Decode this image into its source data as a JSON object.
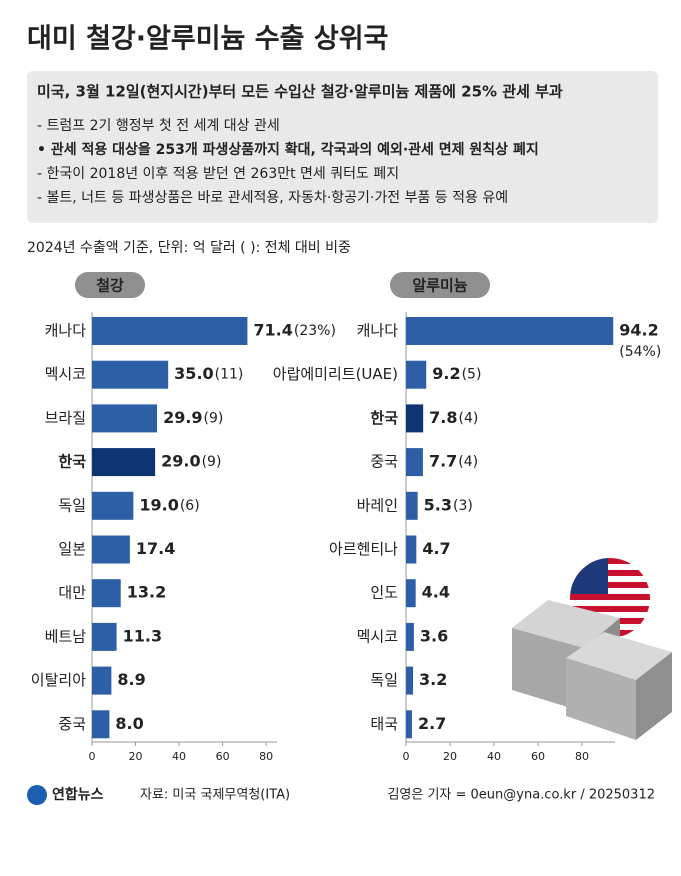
{
  "header": {
    "title": "대미 철강·알루미늄 수출 상위국"
  },
  "notes": {
    "headline": "미국, 3월 12일(현지시간)부터 모든 수입산 철강·알루미늄 제품에 25% 관세 부과",
    "items": [
      {
        "text": "- 트럼프 2기 행정부 첫 전 세계 대상 관세",
        "bold": false
      },
      {
        "text": "• 관세 적용 대상을 253개 파생상품까지 확대, 각국과의 예외·관세 면제 원칙상 폐지",
        "bold": true
      },
      {
        "text": "- 한국이 2018년 이후 적용 받던 연 263만t 면세 쿼터도 폐지",
        "bold": false
      },
      {
        "text": "- 볼트, 너트 등 파생상품은 바로 관세적용, 자동차·항공기·가전 부품 등 적용 유예",
        "bold": false
      }
    ]
  },
  "unit_note": "2024년 수출액 기준, 단위: 억 달러  ( ): 전체 대비 비중",
  "chart_data": [
    {
      "type": "bar",
      "orientation": "horizontal",
      "title": "철강",
      "categories": [
        "캐나다",
        "멕시코",
        "브라질",
        "한국",
        "독일",
        "일본",
        "대만",
        "베트남",
        "이탈리아",
        "중국"
      ],
      "values": [
        71.4,
        35.0,
        29.9,
        29.0,
        19.0,
        17.4,
        13.2,
        11.3,
        8.9,
        8.0
      ],
      "value_labels": [
        "71.4",
        "35.0",
        "29.9",
        "29.0",
        "19.0",
        "17.4",
        "13.2",
        "11.3",
        "8.9",
        "8.0"
      ],
      "shares": [
        23,
        11,
        9,
        9,
        6,
        null,
        null,
        null,
        null,
        null
      ],
      "share_labels": [
        "(23%)",
        "(11)",
        "(9)",
        "(9)",
        "(6)",
        null,
        null,
        null,
        null,
        null
      ],
      "color": "#2d5fa6",
      "highlight": 3,
      "highlight_color": "#0c3572",
      "xlim": [
        0,
        85
      ],
      "xticks": [
        0,
        20,
        40,
        60,
        80
      ]
    },
    {
      "type": "bar",
      "orientation": "horizontal",
      "title": "알루미늄",
      "categories": [
        "캐나다",
        "아랍에미리트(UAE)",
        "한국",
        "중국",
        "바레인",
        "아르헨티나",
        "인도",
        "멕시코",
        "독일",
        "태국"
      ],
      "values": [
        94.2,
        9.2,
        7.8,
        7.7,
        5.3,
        4.7,
        4.4,
        3.6,
        3.2,
        2.7
      ],
      "value_labels": [
        "94.2",
        "9.2",
        "7.8",
        "7.7",
        "5.3",
        "4.7",
        "4.4",
        "3.6",
        "3.2",
        "2.7"
      ],
      "shares": [
        54,
        5,
        4,
        4,
        3,
        null,
        null,
        null,
        null,
        null
      ],
      "share_labels": [
        "(54%)",
        "(5)",
        "(4)",
        "(4)",
        "(3)",
        null,
        null,
        null,
        null,
        null
      ],
      "color": "#2d5fa6",
      "highlight": 2,
      "highlight_color": "#0c3572",
      "xlim": [
        0,
        95
      ],
      "xticks": [
        0,
        20,
        40,
        60,
        80
      ]
    }
  ],
  "footer": {
    "logo": "연합뉴스",
    "source": "자료: 미국 국제무역청(ITA)",
    "credit": "김영은 기자 = 0eun@yna.co.kr / 20250312"
  }
}
